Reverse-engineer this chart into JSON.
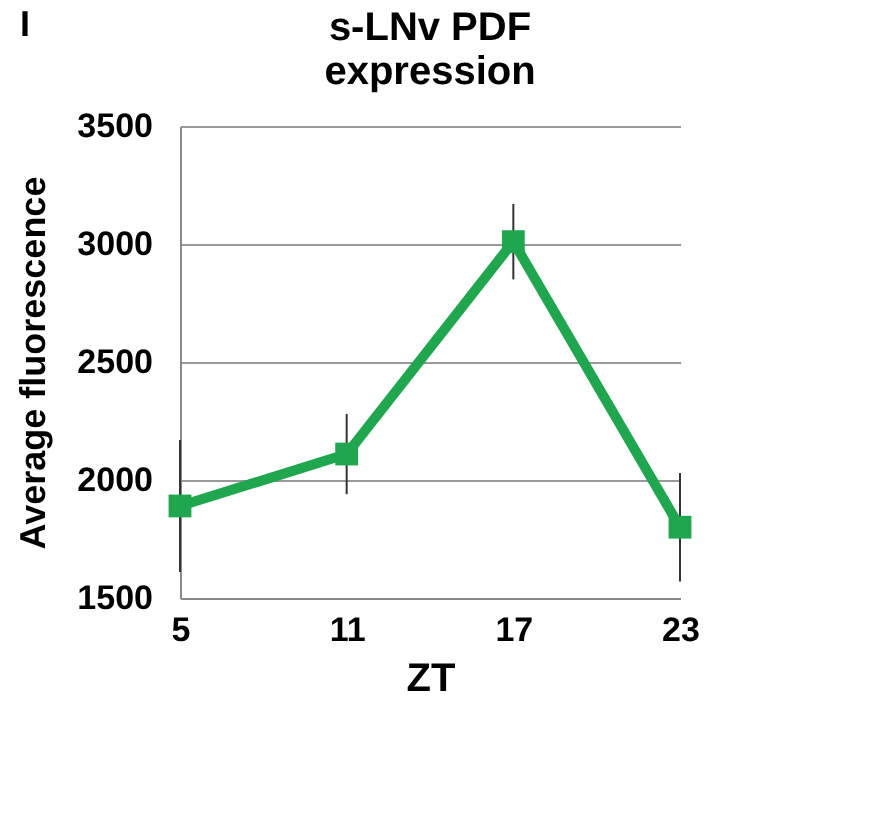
{
  "chart_data": {
    "type": "line",
    "title": "s-LNv PDF\nexpression",
    "xlabel": "ZT",
    "ylabel": "Average fluorescence",
    "x": [
      5,
      11,
      17,
      23
    ],
    "series": [
      {
        "color": "#1fa64e",
        "values": [
          1890,
          2110,
          3010,
          1800
        ],
        "errors": [
          280,
          170,
          160,
          230
        ]
      }
    ],
    "xlim": [
      5,
      23
    ],
    "xticks": [
      5,
      11,
      17,
      23
    ],
    "ylim": [
      1500,
      3500
    ],
    "yticks": [
      1500,
      2000,
      2500,
      3000,
      3500
    ],
    "grid": "y",
    "marker": "square",
    "line_style": "solid",
    "annotations": [
      "I"
    ]
  }
}
